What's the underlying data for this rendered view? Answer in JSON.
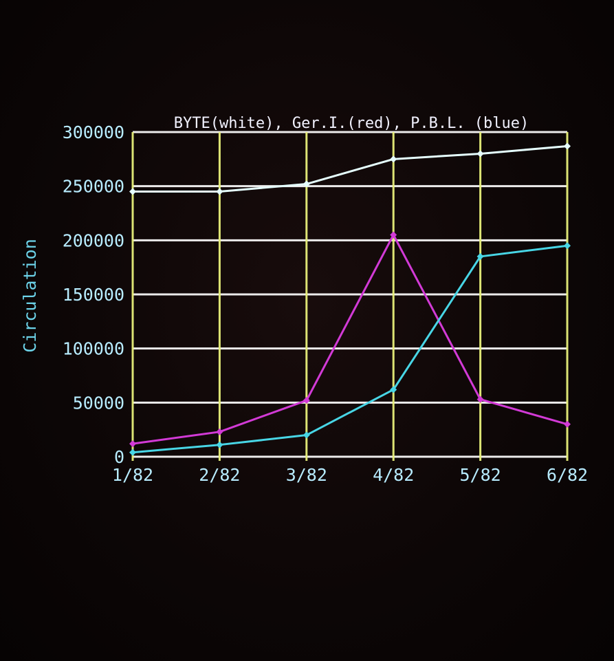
{
  "colors": {
    "background": "#0b0606",
    "grid_vertical": "#e8f07a",
    "grid_horizontal": "#ffffff",
    "tick_text": "#b8ecff",
    "axis_label": "#6cd2e8",
    "title_text": "#f2f2ff",
    "series_white": "#e6ffff",
    "series_red": "#d23ad6",
    "series_blue": "#48d6e6"
  },
  "chart_data": {
    "type": "line",
    "title": "BYTE(white), Ger.I.(red), P.B.L. (blue)",
    "xlabel": "",
    "ylabel": "Circulation",
    "categories": [
      "1/82",
      "2/82",
      "3/82",
      "4/82",
      "5/82",
      "6/82"
    ],
    "y_ticks": [
      "0",
      "50000",
      "100000",
      "150000",
      "200000",
      "250000",
      "300000"
    ],
    "ylim": [
      0,
      300000
    ],
    "grid": true,
    "legend": "none",
    "series": [
      {
        "name": "BYTE",
        "color": "#e6ffff",
        "values": [
          245000,
          245000,
          252000,
          275000,
          280000,
          287000
        ]
      },
      {
        "name": "Ger.I.",
        "color": "#d23ad6",
        "values": [
          12000,
          23000,
          52000,
          205000,
          53000,
          30000
        ]
      },
      {
        "name": "P.B.L.",
        "color": "#48d6e6",
        "values": [
          4000,
          11000,
          20000,
          62000,
          185000,
          195000
        ]
      }
    ]
  }
}
